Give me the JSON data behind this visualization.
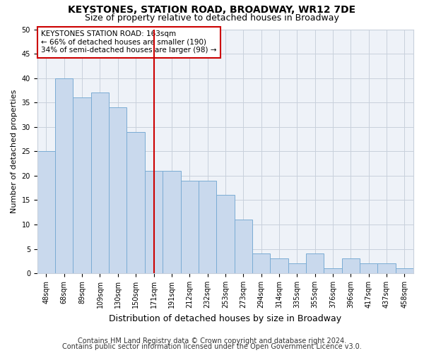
{
  "title": "KEYSTONES, STATION ROAD, BROADWAY, WR12 7DE",
  "subtitle": "Size of property relative to detached houses in Broadway",
  "xlabel": "Distribution of detached houses by size in Broadway",
  "ylabel": "Number of detached properties",
  "categories": [
    "48sqm",
    "68sqm",
    "89sqm",
    "109sqm",
    "130sqm",
    "150sqm",
    "171sqm",
    "191sqm",
    "212sqm",
    "232sqm",
    "253sqm",
    "273sqm",
    "294sqm",
    "314sqm",
    "335sqm",
    "355sqm",
    "376sqm",
    "396sqm",
    "417sqm",
    "437sqm",
    "458sqm"
  ],
  "values": [
    25,
    40,
    36,
    37,
    34,
    29,
    21,
    21,
    19,
    19,
    16,
    11,
    4,
    3,
    2,
    4,
    1,
    3,
    2,
    2,
    1
  ],
  "bar_color": "#c9d9ed",
  "bar_edge_color": "#7aacd4",
  "vline_x_index": 6,
  "vline_color": "#cc0000",
  "ylim": [
    0,
    50
  ],
  "yticks": [
    0,
    5,
    10,
    15,
    20,
    25,
    30,
    35,
    40,
    45,
    50
  ],
  "annotation_box_text": "KEYSTONES STATION ROAD: 163sqm\n← 66% of detached houses are smaller (190)\n34% of semi-detached houses are larger (98) →",
  "annotation_box_color": "#cc0000",
  "background_color": "#eef2f8",
  "grid_color": "#c8d0dc",
  "footer_line1": "Contains HM Land Registry data © Crown copyright and database right 2024.",
  "footer_line2": "Contains public sector information licensed under the Open Government Licence v3.0.",
  "title_fontsize": 10,
  "subtitle_fontsize": 9,
  "xlabel_fontsize": 9,
  "ylabel_fontsize": 8,
  "tick_fontsize": 7,
  "annotation_fontsize": 7.5,
  "footer_fontsize": 7
}
